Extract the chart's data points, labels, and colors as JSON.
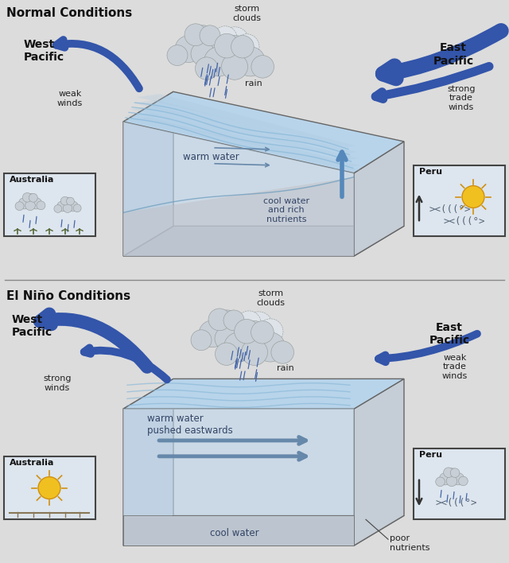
{
  "bg_color": "#dcdcdc",
  "title1": "Normal Conditions",
  "title2": "El Niño Conditions",
  "arrow_blue_dark": "#3355aa",
  "arrow_blue_mid": "#5577bb",
  "arrow_blue_light": "#7799cc",
  "cloud_fill": "#c8cfd6",
  "cloud_dashed_fill": "#dde3e8",
  "box_gray_dark": "#a8adb5",
  "box_gray_mid": "#b8bfc8",
  "water_light": "#c5d8eb",
  "water_lighter": "#d5e5f0",
  "water_wave": "#7aabce",
  "label_dark": "#222222",
  "normal": {
    "west_pacific_label": "West\nPacific",
    "east_pacific_label": "East\nPacific",
    "west_wind_label": "weak\nwinds",
    "east_wind_label": "strong\ntrade\nwinds",
    "warm_water_label": "warm water",
    "cool_water_label": "cool water\nand rich\nnutrients",
    "storm_label": "storm\nclouds",
    "rain_label": "rain",
    "australia_label": "Australia",
    "peru_label": "Peru"
  },
  "elnino": {
    "west_pacific_label": "West\nPacific",
    "east_pacific_label": "East\nPacific",
    "west_wind_label": "strong\nwinds",
    "east_wind_label": "weak\ntrade\nwinds",
    "warm_water_label": "warm water\npushed eastwards",
    "cool_water_label": "cool water",
    "poor_nutrients_label": "poor\nnutrients",
    "storm_label": "storm\nclouds",
    "rain_label": "rain",
    "australia_label": "Australia",
    "peru_label": "Peru"
  }
}
